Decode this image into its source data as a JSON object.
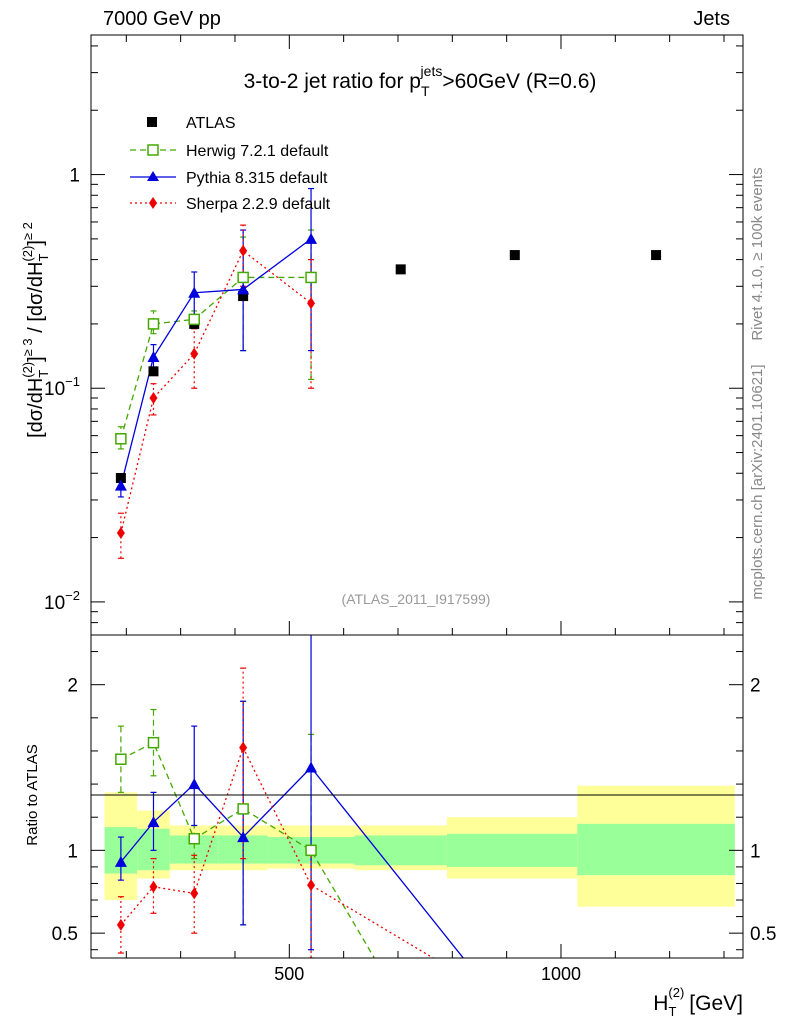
{
  "header": {
    "left": "7000 GeV pp",
    "right": "Jets"
  },
  "side_labels": {
    "rivet": "Rivet 4.1.0, ≥ 100k events",
    "mcplots": "mcplots.cern.ch [arXiv:2401.10621]"
  },
  "chart_data": {
    "type": "scatter",
    "title": "3-to-2 jet ratio for p_T^jets >60GeV (R=0.6)",
    "title_parts": {
      "main": "3-to-2 jet ratio for p",
      "sup": "jets",
      "sub": "T",
      "rest": ">60GeV (R=0.6)"
    },
    "analysis_id": "(ATLAS_2011_I917599)",
    "xlabel": "H_T^(2) [GeV]",
    "xlabel_parts": {
      "main": "H",
      "sub": "T",
      "sup": "(2)",
      "unit": "[GeV]"
    },
    "ylabel": "[dσ/dH_T^(2)]^≥3 / [dσ/dH_T^(2)]^≥2",
    "ylabel_parts": {
      "a": "[dσ/dH",
      "sub": "T",
      "sup": "(2)",
      "close": "]",
      "exp3": "≥ 3",
      "slash": " / ",
      "b": "[dσ/dH",
      "exp2": "≥ 2"
    },
    "ratio_ylabel": "Ratio to ATLAS",
    "x_range": [
      135,
      1335
    ],
    "y_range_log": [
      0.007,
      4.5
    ],
    "ratio_range": [
      0.35,
      2.3
    ],
    "x_ticks": [
      {
        "value": 500,
        "label": "500"
      },
      {
        "value": 1000,
        "label": "1000"
      }
    ],
    "y_ticks": [
      {
        "value": 0.01,
        "base": "10",
        "exp": "−2"
      },
      {
        "value": 0.1,
        "base": "10",
        "exp": "−1"
      },
      {
        "value": 1,
        "base": "1",
        "exp": ""
      }
    ],
    "ratio_ticks": [
      {
        "value": 0.5,
        "label": "0.5"
      },
      {
        "value": 1,
        "label": "1"
      },
      {
        "value": 2,
        "label": "2"
      }
    ],
    "data": {
      "name": "ATLAS",
      "color": "#000000",
      "x": [
        190,
        250,
        325,
        415,
        540,
        705,
        915,
        1175
      ],
      "x_edges": [
        [
          160,
          220
        ],
        [
          220,
          280
        ],
        [
          280,
          370
        ],
        [
          370,
          460
        ],
        [
          460,
          620
        ],
        [
          620,
          790
        ],
        [
          790,
          1030
        ],
        [
          1030,
          1320
        ]
      ],
      "y": [
        0.038,
        0.12,
        0.2,
        0.27,
        0.33,
        0.36,
        0.42,
        0.42
      ],
      "band_inner": [
        [
          0.86,
          1.14
        ],
        [
          0.88,
          1.13
        ],
        [
          0.92,
          1.09
        ],
        [
          0.92,
          1.09
        ],
        [
          0.92,
          1.08
        ],
        [
          0.91,
          1.09
        ],
        [
          0.9,
          1.1
        ],
        [
          0.85,
          1.16
        ]
      ],
      "band_outer": [
        [
          0.7,
          1.35
        ],
        [
          0.83,
          1.24
        ],
        [
          0.88,
          1.15
        ],
        [
          0.88,
          1.15
        ],
        [
          0.89,
          1.15
        ],
        [
          0.88,
          1.15
        ],
        [
          0.83,
          1.2
        ],
        [
          0.66,
          1.39
        ]
      ]
    },
    "series": [
      {
        "name": "Herwig 7.2.1 default",
        "color": "#44a800",
        "dash": "6,4",
        "marker": "open-square",
        "x": [
          190,
          250,
          325,
          415,
          540
        ],
        "y": [
          0.058,
          0.2,
          0.21,
          0.33,
          0.33
        ],
        "err_lo": [
          0.052,
          0.18,
          0.19,
          0.15,
          0.11
        ],
        "err_hi": [
          0.066,
          0.23,
          0.23,
          0.51,
          0.55
        ],
        "ratio": [
          1.55,
          1.65,
          1.07,
          1.25,
          1.0
        ],
        "ratio_lo": [
          1.35,
          1.45,
          0.95,
          0.55,
          0.33
        ],
        "ratio_hi": [
          1.75,
          1.85,
          1.15,
          1.9,
          1.7
        ],
        "ratio_tail": [
          [
            540,
            1.0
          ],
          [
            660,
            0.33
          ]
        ]
      },
      {
        "name": "Pythia 8.315 default",
        "color": "#0000dd",
        "dash": "",
        "marker": "triangle",
        "x": [
          190,
          250,
          325,
          415,
          540
        ],
        "y": [
          0.035,
          0.14,
          0.28,
          0.29,
          0.5
        ],
        "err_lo": [
          0.031,
          0.12,
          0.22,
          0.15,
          0.15
        ],
        "err_hi": [
          0.039,
          0.16,
          0.35,
          0.55,
          0.86
        ],
        "ratio": [
          0.93,
          1.17,
          1.4,
          1.08,
          1.5
        ],
        "ratio_lo": [
          0.82,
          1.0,
          1.15,
          0.55,
          0.4
        ],
        "ratio_hi": [
          1.08,
          1.35,
          1.75,
          1.9,
          2.4
        ],
        "ratio_tail": [
          [
            540,
            1.5
          ],
          [
            825,
            0.33
          ]
        ]
      },
      {
        "name": "Sherpa 2.2.9 default",
        "color": "#ee0000",
        "dash": "2,3",
        "marker": "diamond",
        "x": [
          190,
          250,
          325,
          415,
          540
        ],
        "y": [
          0.021,
          0.09,
          0.145,
          0.44,
          0.25
        ],
        "err_lo": [
          0.016,
          0.075,
          0.1,
          0.3,
          0.1
        ],
        "err_hi": [
          0.026,
          0.105,
          0.19,
          0.58,
          0.4
        ],
        "ratio": [
          0.55,
          0.78,
          0.74,
          1.62,
          0.79
        ],
        "ratio_lo": [
          0.38,
          0.62,
          0.5,
          0.95,
          0.35
        ],
        "ratio_hi": [
          0.72,
          0.95,
          0.97,
          2.1,
          1.0
        ],
        "ratio_tail": [
          [
            540,
            0.79
          ],
          [
            775,
            0.33
          ]
        ]
      }
    ]
  }
}
